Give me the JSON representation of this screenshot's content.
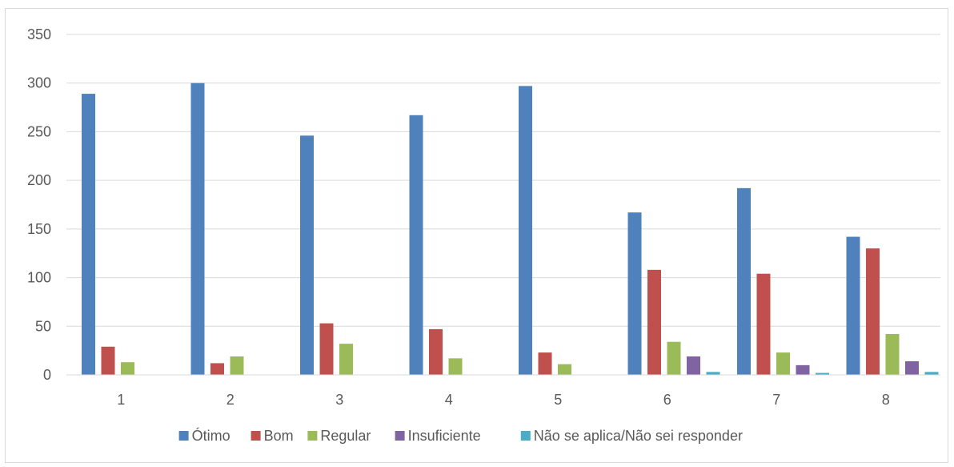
{
  "chart_data": {
    "type": "bar",
    "title": "",
    "xlabel": "",
    "ylabel": "",
    "ylim": [
      0,
      350
    ],
    "yticks": [
      0,
      50,
      100,
      150,
      200,
      250,
      300,
      350
    ],
    "grid": true,
    "legend_position": "bottom",
    "categories": [
      "1",
      "2",
      "3",
      "4",
      "5",
      "6",
      "7",
      "8"
    ],
    "series": [
      {
        "name": "Ótimo",
        "color": "#4f81bd",
        "values": [
          289,
          300,
          246,
          267,
          297,
          167,
          192,
          142
        ]
      },
      {
        "name": "Bom",
        "color": "#c0504d",
        "values": [
          29,
          12,
          53,
          47,
          23,
          108,
          104,
          130
        ]
      },
      {
        "name": "Regular",
        "color": "#9bbb59",
        "values": [
          13,
          19,
          32,
          17,
          11,
          34,
          23,
          42
        ]
      },
      {
        "name": "Insuficiente",
        "color": "#8064a2",
        "values": [
          0,
          0,
          0,
          0,
          0,
          19,
          10,
          14
        ]
      },
      {
        "name": "Não se aplica/Não sei responder",
        "color": "#4bacc6",
        "values": [
          0,
          0,
          0,
          0,
          0,
          3,
          2,
          3
        ]
      }
    ]
  }
}
